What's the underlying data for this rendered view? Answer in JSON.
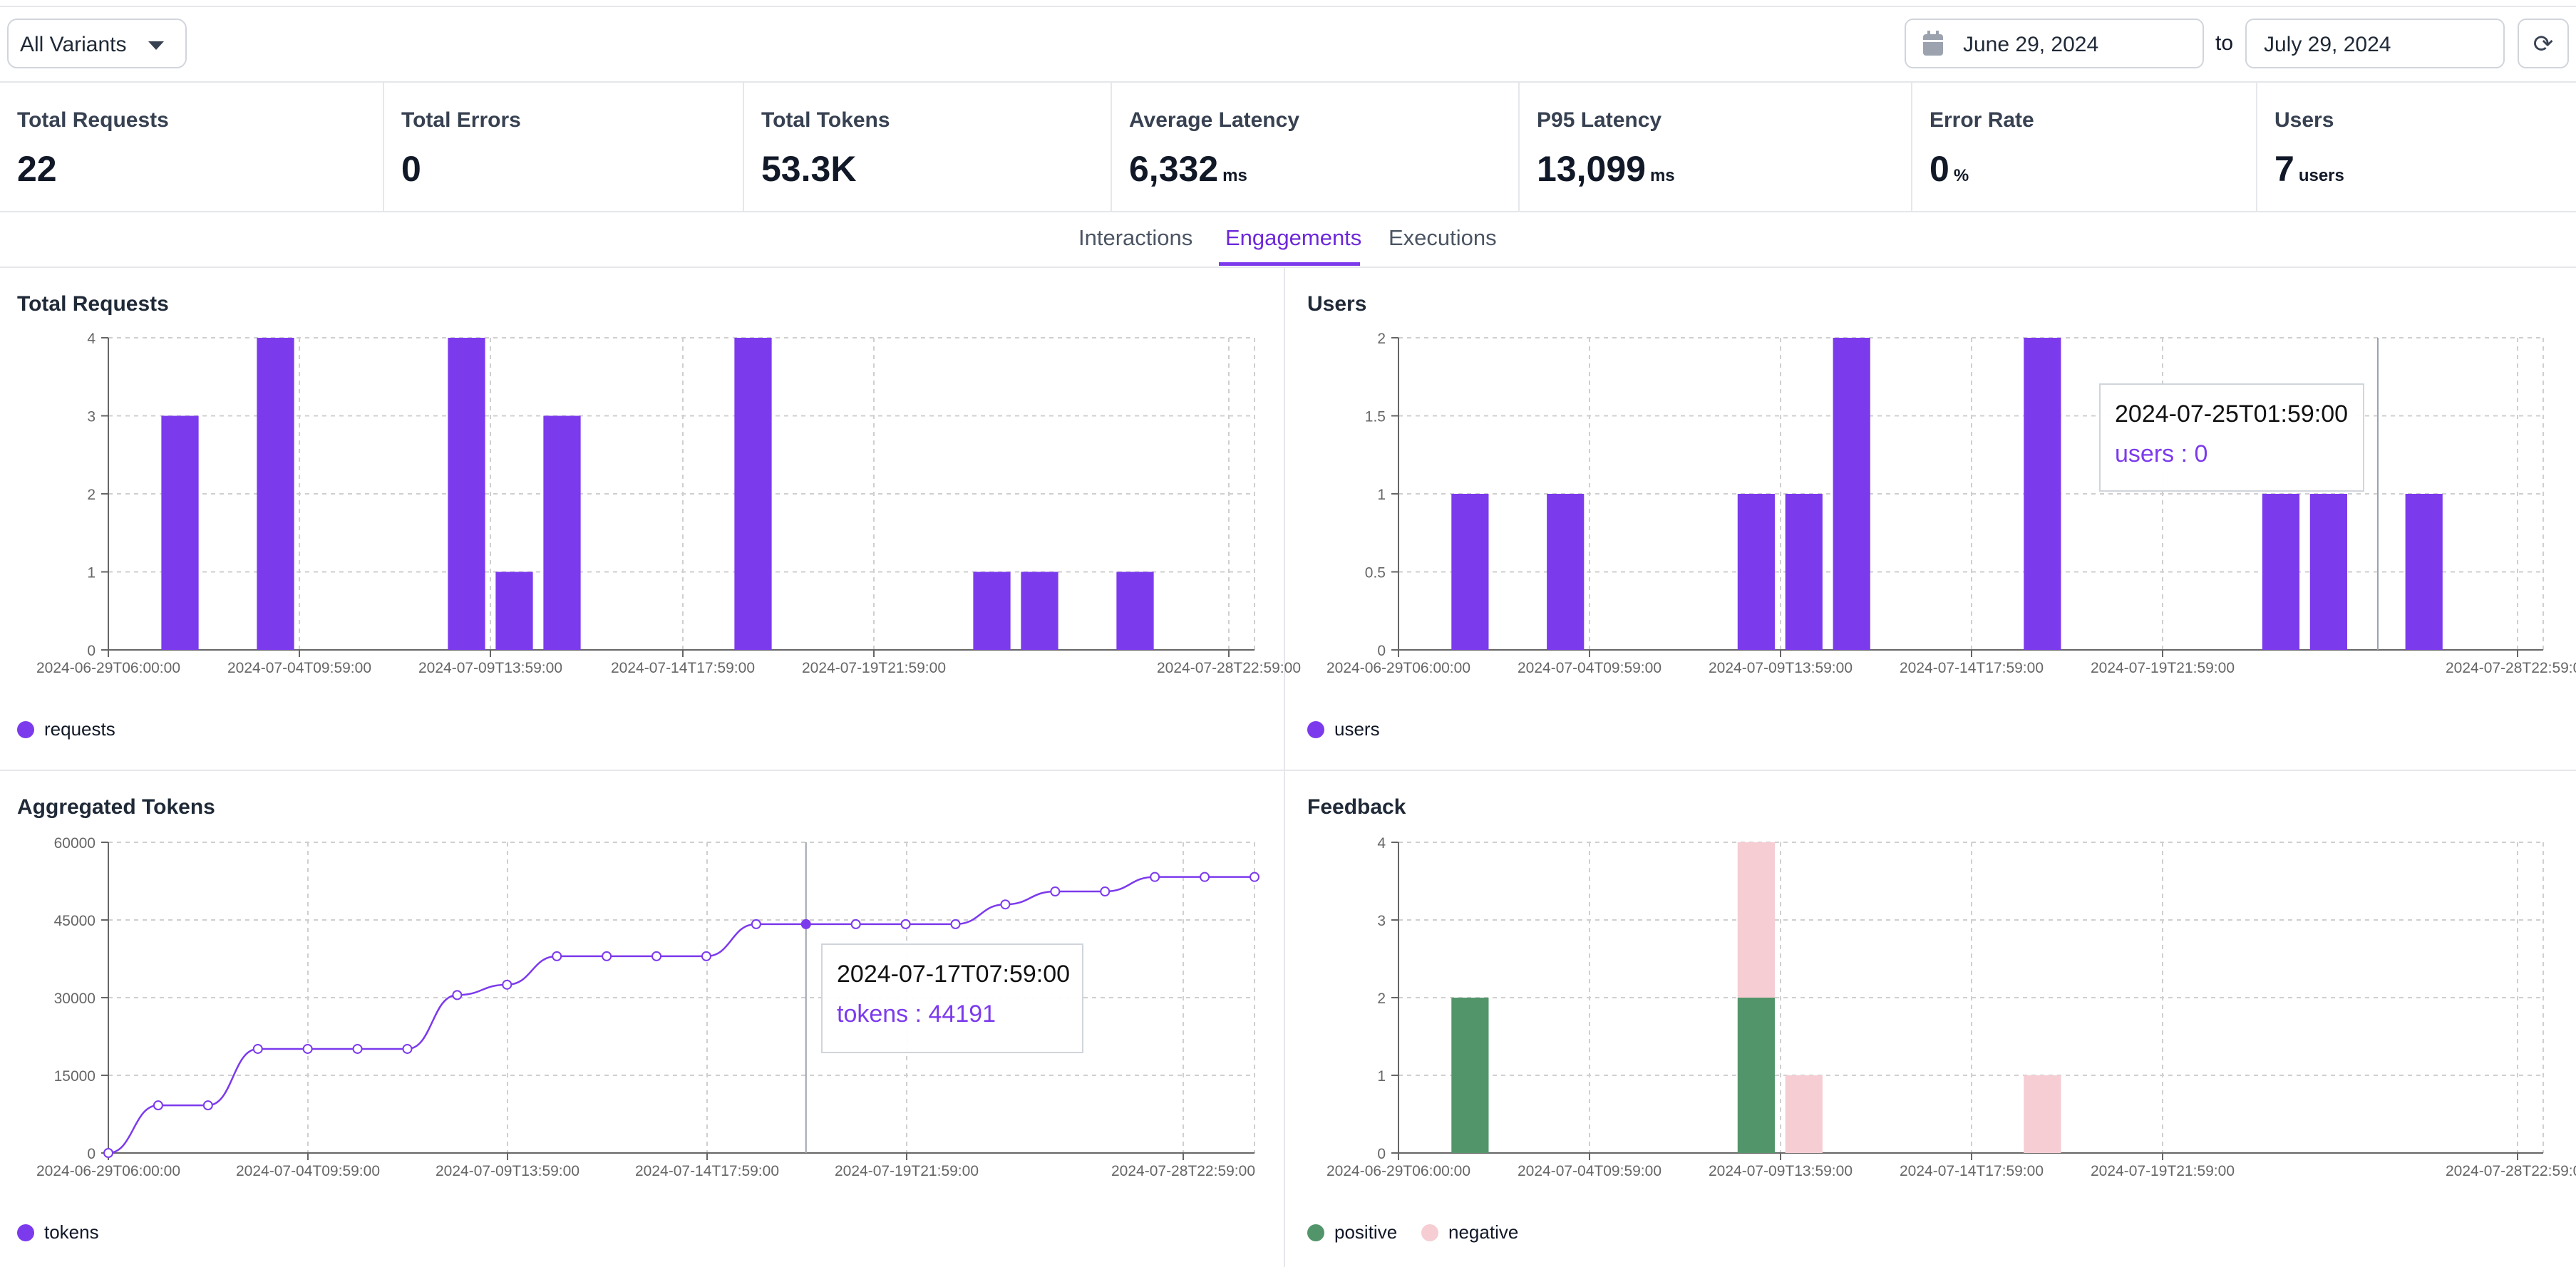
{
  "filters": {
    "variant": "All Variants",
    "start_date": "June 29, 2024",
    "to_label": "to",
    "end_date": "July 29, 2024"
  },
  "stats": [
    {
      "title": "Total Requests",
      "value": "22",
      "unit": ""
    },
    {
      "title": "Total Errors",
      "value": "0",
      "unit": ""
    },
    {
      "title": "Total Tokens",
      "value": "53.3K",
      "unit": ""
    },
    {
      "title": "Average Latency",
      "value": "6,332",
      "unit": "ms"
    },
    {
      "title": "P95 Latency",
      "value": "13,099",
      "unit": "ms"
    },
    {
      "title": "Error Rate",
      "value": "0",
      "unit": "%"
    },
    {
      "title": "Users",
      "value": "7",
      "unit": "users"
    }
  ],
  "tabs": [
    {
      "label": "Interactions",
      "active": false
    },
    {
      "label": "Engagements",
      "active": true
    },
    {
      "label": "Executions",
      "active": false
    }
  ],
  "colors": {
    "accent": "#7c3aed",
    "positive": "#53956a",
    "negative": "#f5cdd3"
  },
  "chart_data": [
    {
      "id": "requests",
      "type": "bar",
      "title": "Total Requests",
      "x_ticks": [
        "2024-06-29T06:00:00",
        "2024-07-04T09:59:00",
        "2024-07-09T13:59:00",
        "2024-07-14T17:59:00",
        "2024-07-19T21:59:00",
        "2024-07-28T22:59:00"
      ],
      "y_ticks": [
        "0",
        "1",
        "2",
        "3",
        "4"
      ],
      "ylim": [
        0,
        4
      ],
      "x_range": [
        0,
        24
      ],
      "series": [
        {
          "name": "requests",
          "color": "#7c3aed",
          "points": [
            [
              1.5,
              3
            ],
            [
              3.5,
              4
            ],
            [
              7.5,
              4
            ],
            [
              8.5,
              1
            ],
            [
              9.5,
              3
            ],
            [
              13.5,
              4
            ],
            [
              18.5,
              1
            ],
            [
              19.5,
              1
            ],
            [
              21.5,
              1
            ]
          ]
        }
      ]
    },
    {
      "id": "users",
      "type": "bar",
      "title": "Users",
      "x_ticks": [
        "2024-06-29T06:00:00",
        "2024-07-04T09:59:00",
        "2024-07-09T13:59:00",
        "2024-07-14T17:59:00",
        "2024-07-19T21:59:00",
        "2024-07-28T22:59:00"
      ],
      "y_ticks": [
        "0",
        "0.5",
        "1",
        "1.5",
        "2"
      ],
      "ylim": [
        0,
        2
      ],
      "x_range": [
        0,
        24
      ],
      "series": [
        {
          "name": "users",
          "color": "#7c3aed",
          "points": [
            [
              1.5,
              1
            ],
            [
              3.5,
              1
            ],
            [
              7.5,
              1
            ],
            [
              8.5,
              1
            ],
            [
              9.5,
              2
            ],
            [
              13.5,
              2
            ],
            [
              18.5,
              1
            ],
            [
              19.5,
              1
            ],
            [
              21.5,
              1
            ]
          ]
        }
      ],
      "tooltip": {
        "label": "2024-07-25T01:59:00",
        "text": "users : 0"
      }
    },
    {
      "id": "tokens",
      "type": "line",
      "title": "Aggregated Tokens",
      "x_ticks": [
        "2024-06-29T06:00:00",
        "2024-07-04T09:59:00",
        "2024-07-09T13:59:00",
        "2024-07-14T17:59:00",
        "2024-07-19T21:59:00",
        "2024-07-28T22:59:00"
      ],
      "y_ticks": [
        "0",
        "15000",
        "30000",
        "45000",
        "60000"
      ],
      "ylim": [
        0,
        60000
      ],
      "x_range": [
        0,
        23
      ],
      "series": [
        {
          "name": "tokens",
          "color": "#7c3aed",
          "values": [
            0,
            9200,
            9200,
            20100,
            20100,
            20100,
            20100,
            30500,
            32500,
            38000,
            38000,
            38000,
            38000,
            44191,
            44191,
            44191,
            44191,
            44191,
            48000,
            50500,
            50500,
            53300,
            53300,
            53300
          ]
        }
      ],
      "highlight_index": 14,
      "tooltip": {
        "label": "2024-07-17T07:59:00",
        "text": "tokens : 44191"
      }
    },
    {
      "id": "feedback",
      "type": "stacked-bar",
      "title": "Feedback",
      "x_ticks": [
        "2024-06-29T06:00:00",
        "2024-07-04T09:59:00",
        "2024-07-09T13:59:00",
        "2024-07-14T17:59:00",
        "2024-07-19T21:59:00",
        "2024-07-28T22:59:00"
      ],
      "y_ticks": [
        "0",
        "1",
        "2",
        "3",
        "4"
      ],
      "ylim": [
        0,
        4
      ],
      "x_range": [
        0,
        24
      ],
      "series": [
        {
          "name": "positive",
          "color": "#53956a",
          "points": [
            [
              1.5,
              2
            ],
            [
              7.5,
              2
            ]
          ]
        },
        {
          "name": "negative",
          "color": "#f5cdd3",
          "points": [
            [
              7.5,
              2
            ],
            [
              8.5,
              1
            ],
            [
              13.5,
              1
            ]
          ]
        }
      ]
    }
  ]
}
